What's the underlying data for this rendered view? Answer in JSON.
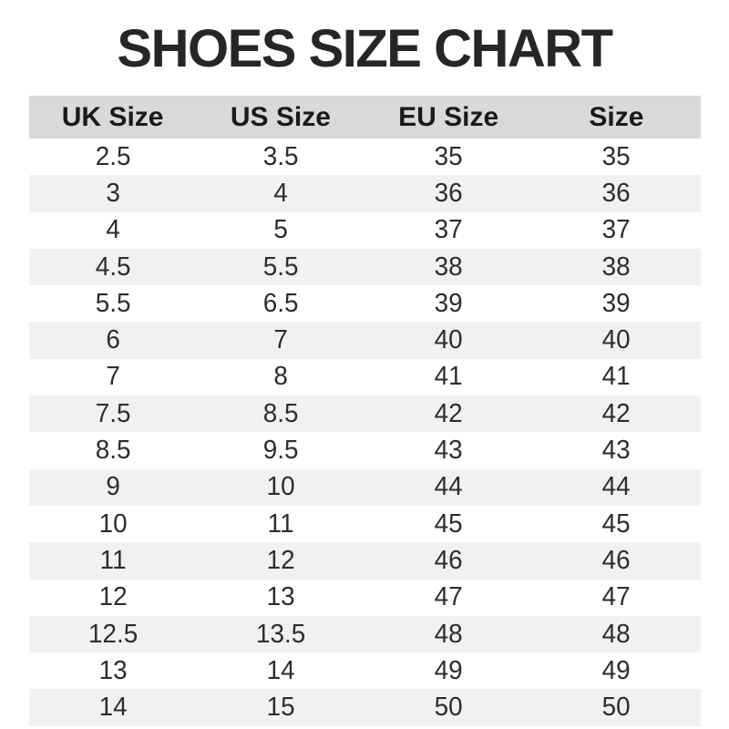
{
  "title": "SHOES SIZE CHART",
  "colors": {
    "title_color": "#262626",
    "header_bg": "#d9d9d9",
    "row_alt_bg": "#f1f1f1",
    "header_text_color": "#1a1a1a",
    "text_color": "#2d2d2d"
  },
  "chart_data": {
    "type": "table",
    "title": "SHOES SIZE CHART",
    "columns": [
      "UK Size",
      "US Size",
      "EU Size",
      "Size"
    ],
    "rows": [
      [
        "2.5",
        "3.5",
        "35",
        "35"
      ],
      [
        "3",
        "4",
        "36",
        "36"
      ],
      [
        "4",
        "5",
        "37",
        "37"
      ],
      [
        "4.5",
        "5.5",
        "38",
        "38"
      ],
      [
        "5.5",
        "6.5",
        "39",
        "39"
      ],
      [
        "6",
        "7",
        "40",
        "40"
      ],
      [
        "7",
        "8",
        "41",
        "41"
      ],
      [
        "7.5",
        "8.5",
        "42",
        "42"
      ],
      [
        "8.5",
        "9.5",
        "43",
        "43"
      ],
      [
        "9",
        "10",
        "44",
        "44"
      ],
      [
        "10",
        "11",
        "45",
        "45"
      ],
      [
        "11",
        "12",
        "46",
        "46"
      ],
      [
        "12",
        "13",
        "47",
        "47"
      ],
      [
        "12.5",
        "13.5",
        "48",
        "48"
      ],
      [
        "13",
        "14",
        "49",
        "49"
      ],
      [
        "14",
        "15",
        "50",
        "50"
      ]
    ],
    "layout": {
      "alternating_rows": true,
      "first_data_row_background": "white",
      "grid": false,
      "legend": "none"
    }
  }
}
